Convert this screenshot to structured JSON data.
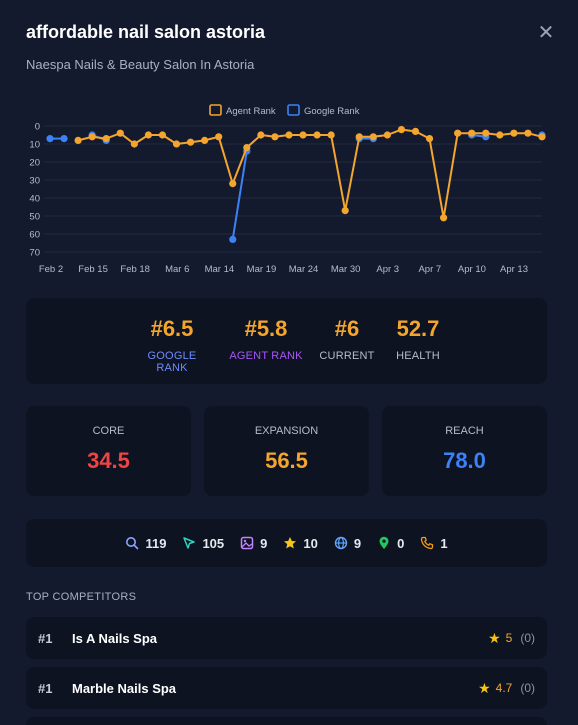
{
  "header": {
    "title": "affordable nail salon astoria",
    "subtitle": "Naespa Nails & Beauty Salon In Astoria",
    "close_label": "✕"
  },
  "chart_data": {
    "type": "line",
    "x_labels": [
      "Feb 2",
      "Feb 15",
      "Feb 18",
      "Mar 6",
      "Mar 14",
      "Mar 19",
      "Mar 24",
      "Mar 30",
      "Apr 3",
      "Apr 7",
      "Apr 10",
      "Apr 13"
    ],
    "y_ticks": [
      0,
      10,
      20,
      30,
      40,
      50,
      60,
      70
    ],
    "ylim": [
      0,
      70
    ],
    "y_inverted": true,
    "legend_position": "top-center",
    "series": [
      {
        "name": "Agent Rank",
        "color": "#f3a52d",
        "values": [
          null,
          null,
          8,
          6,
          7,
          4,
          10,
          5,
          5,
          10,
          9,
          8,
          6,
          32,
          12,
          5,
          6,
          5,
          5,
          5,
          5,
          47,
          6,
          6,
          5,
          2,
          3,
          7,
          51,
          4,
          4,
          4,
          5,
          4,
          4,
          6
        ]
      },
      {
        "name": "Google Rank",
        "color": "#3b82f6",
        "values": [
          7,
          7,
          null,
          5,
          8,
          null,
          null,
          null,
          null,
          null,
          null,
          null,
          null,
          63,
          14,
          null,
          null,
          null,
          null,
          null,
          null,
          null,
          7,
          7,
          null,
          null,
          null,
          null,
          null,
          null,
          5,
          6,
          null,
          null,
          null,
          5
        ]
      }
    ]
  },
  "ranks": {
    "google": {
      "value": "#6.5",
      "label": "GOOGLE RANK"
    },
    "agent": {
      "value": "#5.8",
      "label": "AGENT RANK"
    },
    "current": {
      "value": "#6",
      "label": "CURRENT"
    },
    "health": {
      "value": "52.7",
      "label": "HEALTH"
    }
  },
  "metrics": {
    "core": {
      "label": "CORE",
      "value": "34.5"
    },
    "expansion": {
      "label": "EXPANSION",
      "value": "56.5"
    },
    "reach": {
      "label": "REACH",
      "value": "78.0"
    }
  },
  "stats": {
    "searches": {
      "icon": "search-icon",
      "value": "119"
    },
    "clicks": {
      "icon": "cursor-icon",
      "value": "105"
    },
    "photos": {
      "icon": "image-icon",
      "value": "9"
    },
    "reviews": {
      "icon": "star-icon",
      "value": "10"
    },
    "web": {
      "icon": "globe-icon",
      "value": "9"
    },
    "directions": {
      "icon": "map-pin-icon",
      "value": "0"
    },
    "calls": {
      "icon": "phone-icon",
      "value": "1"
    }
  },
  "competitors": {
    "title": "TOP COMPETITORS",
    "items": [
      {
        "rank": "#1",
        "name": "Is A Nails Spa",
        "rating": "5",
        "reviews": "(0)"
      },
      {
        "rank": "#1",
        "name": "Marble Nails Spa",
        "rating": "4.7",
        "reviews": "(0)"
      }
    ]
  },
  "colors": {
    "accent_orange": "#f3a52d",
    "google_blue": "#6b8cff",
    "agent_purple": "#a855f7",
    "core_red": "#ef4444",
    "reach_blue": "#3b82f6"
  }
}
